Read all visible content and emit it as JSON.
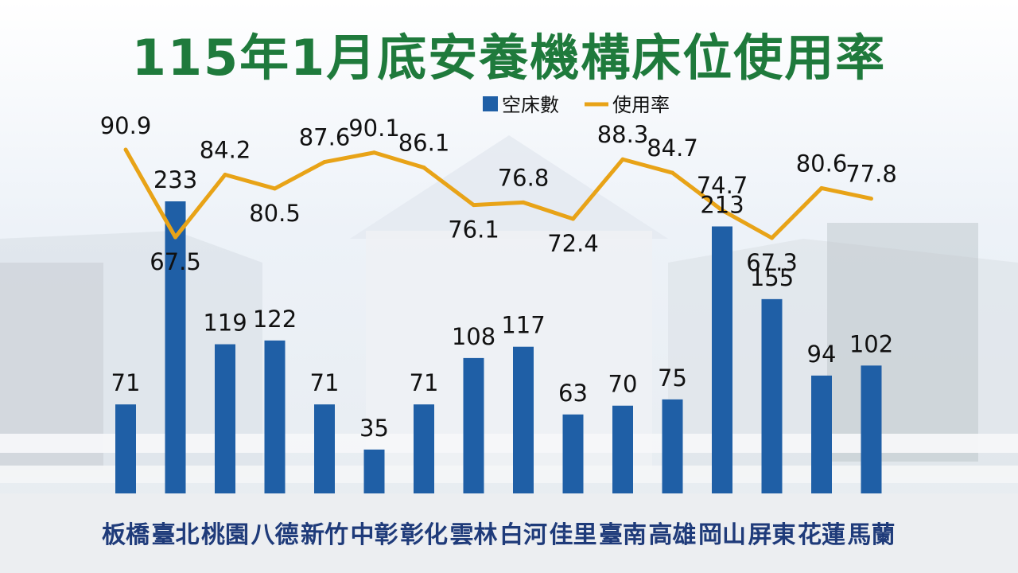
{
  "title": "115年1月底安養機構床位使用率",
  "colors": {
    "bar": "#1f5fa6",
    "line": "#e8a317",
    "title": "#1f7a3c",
    "category": "#1f3b7a"
  },
  "chart_data": {
    "type": "bar+line",
    "title": "115年1月底安養機構床位使用率",
    "legend": {
      "position": "top-center",
      "entries": [
        "空床數",
        "使用率"
      ]
    },
    "categories": [
      "板橋",
      "臺北",
      "桃園",
      "八德",
      "新竹",
      "中彰",
      "彰化",
      "雲林",
      "白河",
      "佳里",
      "臺南",
      "高雄",
      "岡山",
      "屏東",
      "花蓮",
      "馬蘭"
    ],
    "series": [
      {
        "name": "空床數",
        "type": "bar",
        "values": [
          71,
          233,
          119,
          122,
          71,
          35,
          71,
          108,
          117,
          63,
          70,
          75,
          213,
          155,
          94,
          102
        ]
      },
      {
        "name": "使用率",
        "type": "line",
        "values": [
          90.9,
          67.5,
          84.2,
          80.5,
          87.6,
          90.1,
          86.1,
          76.1,
          76.8,
          72.4,
          88.3,
          84.7,
          74.7,
          67.3,
          80.6,
          77.8
        ]
      }
    ],
    "bar_ylim": [
      0,
      233
    ],
    "line_ylim": [
      67.3,
      90.9
    ],
    "grid": false
  }
}
